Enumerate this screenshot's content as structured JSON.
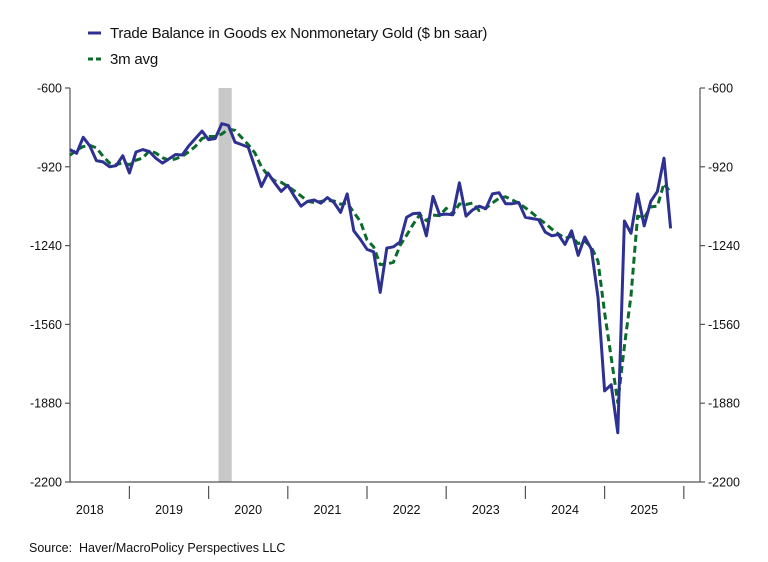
{
  "chart_data": {
    "type": "line",
    "title": "",
    "xlabel": "",
    "ylabel": "",
    "ylim": [
      -2200,
      -600
    ],
    "yticks": [
      "-600",
      "-920",
      "-1240",
      "-1560",
      "-1880",
      "-2200"
    ],
    "ytick_values": [
      -600,
      -920,
      -1240,
      -1560,
      -1880,
      -2200
    ],
    "x_year_labels": [
      "2018",
      "2019",
      "2020",
      "2021",
      "2022",
      "2023",
      "2024",
      "2025"
    ],
    "grid": false,
    "legend_position": "top",
    "recession_shading": {
      "start": "2020-02",
      "end": "2020-04",
      "color": "#C8C8C8"
    },
    "x": [
      "2018-04",
      "2018-05",
      "2018-06",
      "2018-07",
      "2018-08",
      "2018-09",
      "2018-10",
      "2018-11",
      "2018-12",
      "2019-01",
      "2019-02",
      "2019-03",
      "2019-04",
      "2019-05",
      "2019-06",
      "2019-07",
      "2019-08",
      "2019-09",
      "2019-10",
      "2019-11",
      "2019-12",
      "2020-01",
      "2020-02",
      "2020-03",
      "2020-04",
      "2020-05",
      "2020-06",
      "2020-07",
      "2020-08",
      "2020-09",
      "2020-10",
      "2020-11",
      "2020-12",
      "2021-01",
      "2021-02",
      "2021-03",
      "2021-04",
      "2021-05",
      "2021-06",
      "2021-07",
      "2021-08",
      "2021-09",
      "2021-10",
      "2021-11",
      "2021-12",
      "2022-01",
      "2022-02",
      "2022-03",
      "2022-04",
      "2022-05",
      "2022-06",
      "2022-07",
      "2022-08",
      "2022-09",
      "2022-10",
      "2022-11",
      "2022-12",
      "2023-01",
      "2023-02",
      "2023-03",
      "2023-04",
      "2023-05",
      "2023-06",
      "2023-07",
      "2023-08",
      "2023-09",
      "2023-10",
      "2023-11",
      "2023-12",
      "2024-01",
      "2024-02",
      "2024-03",
      "2024-04",
      "2024-05",
      "2024-06",
      "2024-07",
      "2024-08",
      "2024-09",
      "2024-10",
      "2024-11",
      "2024-12",
      "2025-01",
      "2025-02",
      "2025-03",
      "2025-04",
      "2025-05",
      "2025-06",
      "2025-07",
      "2025-08",
      "2025-09",
      "2025-10",
      "2025-11"
    ],
    "series": [
      {
        "name": "Trade Balance in Goods ex Nonmonetary Gold ($ bn saar)",
        "color": "#2E3192",
        "style": "solid",
        "values": [
          -850,
          -865,
          -800,
          -835,
          -895,
          -900,
          -920,
          -915,
          -875,
          -945,
          -860,
          -850,
          -858,
          -885,
          -905,
          -888,
          -870,
          -872,
          -835,
          -805,
          -775,
          -810,
          -805,
          -745,
          -752,
          -820,
          -830,
          -840,
          -920,
          -1000,
          -945,
          -985,
          -1020,
          -995,
          -1040,
          -1080,
          -1060,
          -1055,
          -1068,
          -1045,
          -1065,
          -1105,
          -1030,
          -1180,
          -1215,
          -1255,
          -1265,
          -1430,
          -1250,
          -1245,
          -1225,
          -1125,
          -1110,
          -1108,
          -1200,
          -1040,
          -1115,
          -1112,
          -1115,
          -985,
          -1120,
          -1095,
          -1080,
          -1090,
          -1030,
          -1025,
          -1070,
          -1070,
          -1065,
          -1125,
          -1130,
          -1135,
          -1185,
          -1200,
          -1195,
          -1235,
          -1180,
          -1280,
          -1205,
          -1255,
          -1450,
          -1830,
          -1805,
          -2000,
          -1140,
          -1190,
          -1030,
          -1160,
          -1060,
          -1020,
          -885,
          -1170
        ]
      },
      {
        "name": "3m avg",
        "color": "#0B6B2B",
        "style": "dashed",
        "values": [
          -873,
          -852,
          -838,
          -833,
          -843,
          -877,
          -905,
          -912,
          -903,
          -912,
          -893,
          -885,
          -856,
          -864,
          -883,
          -893,
          -888,
          -877,
          -859,
          -837,
          -805,
          -797,
          -797,
          -787,
          -767,
          -772,
          -801,
          -830,
          -863,
          -920,
          -955,
          -977,
          -983,
          -1000,
          -1018,
          -1038,
          -1060,
          -1065,
          -1061,
          -1056,
          -1059,
          -1072,
          -1067,
          -1105,
          -1142,
          -1217,
          -1245,
          -1317,
          -1315,
          -1308,
          -1240,
          -1198,
          -1153,
          -1114,
          -1139,
          -1116,
          -1118,
          -1089,
          -1114,
          -1071,
          -1073,
          -1067,
          -1098,
          -1088,
          -1067,
          -1048,
          -1042,
          -1055,
          -1068,
          -1087,
          -1107,
          -1130,
          -1150,
          -1173,
          -1193,
          -1210,
          -1203,
          -1232,
          -1222,
          -1247,
          -1303,
          -1512,
          -1695,
          -1878,
          -1648,
          -1443,
          -1120,
          -1127,
          -1083,
          -1080,
          -988,
          -1025
        ]
      }
    ],
    "source": "Source:  Haver/MacroPolicy Perspectives LLC"
  }
}
